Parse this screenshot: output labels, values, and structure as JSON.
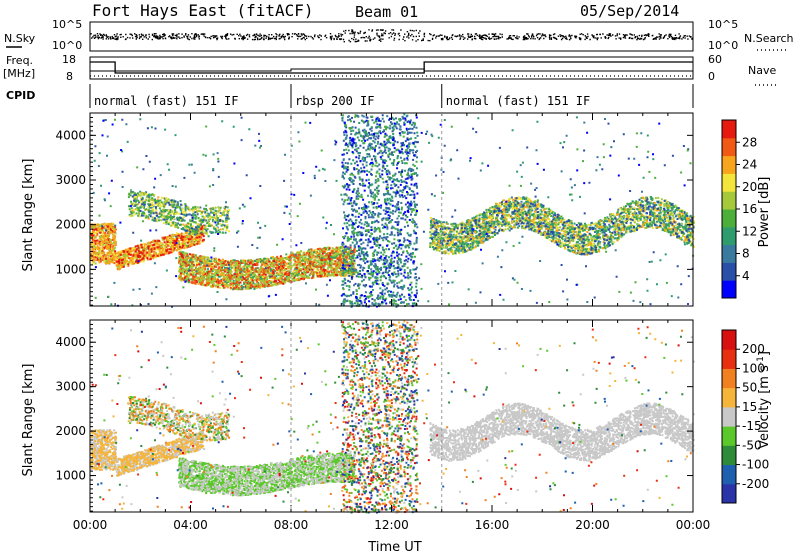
{
  "header": {
    "station": "Fort Hays East (fitACF)",
    "beam": "Beam 01",
    "date": "05/Sep/2014"
  },
  "panels": {
    "nsky_label": "N.Sky",
    "nsky_ticks": [
      "10^5",
      "10^0"
    ],
    "nsearch_label": "N.Search",
    "nsearch_ticks": [
      "10^5",
      "10^0"
    ],
    "freq_label": "Freq.",
    "freq_unit": "[MHz]",
    "freq_ticks": [
      "18",
      "8"
    ],
    "nave_label": "Nave",
    "nave_ticks": [
      "60",
      "0"
    ],
    "cpid_label": "CPID",
    "cpid_segments": [
      {
        "label": "normal (fast) 151 IF",
        "start": 0,
        "end": 8
      },
      {
        "label": "rbsp 200 IF",
        "start": 8,
        "end": 14
      },
      {
        "label": "normal (fast) 151 IF",
        "start": 14,
        "end": 24
      }
    ]
  },
  "chart_data": [
    {
      "type": "heatmap",
      "name": "power",
      "ylabel": "Slant Range [km]",
      "xlabel": "",
      "ylim": [
        180,
        4500
      ],
      "xlim": [
        0,
        24
      ],
      "yticks": [
        "1000",
        "2000",
        "3000",
        "4000"
      ],
      "colorbar_label": "Power [dB]",
      "colorbar_ticks": [
        "28",
        "24",
        "20",
        "16",
        "12",
        "8",
        "4"
      ],
      "colors": [
        "#0000ff",
        "#2a4fa8",
        "#3a7a9e",
        "#2f9c6e",
        "#4caf3a",
        "#a5c93a",
        "#f3e53c",
        "#f7a51c",
        "#f05a14",
        "#e61a10"
      ]
    },
    {
      "type": "heatmap",
      "name": "velocity",
      "ylabel": "Slant Range [km]",
      "xlabel": "Time UT",
      "ylim": [
        180,
        4500
      ],
      "xlim": [
        0,
        24
      ],
      "yticks": [
        "1000",
        "2000",
        "3000",
        "4000"
      ],
      "xticks": [
        "00:00",
        "04:00",
        "08:00",
        "12:00",
        "16:00",
        "20:00",
        "00:00"
      ],
      "colorbar_label": "Velocity [m s",
      "colorbar_label_sup": "-1",
      "colorbar_label_end": "]",
      "colorbar_ticks": [
        "200",
        "100",
        "50",
        "15",
        "-15",
        "-50",
        "-100",
        "-200"
      ],
      "colors": [
        "#2a33a8",
        "#1f5fb0",
        "#2e8b3a",
        "#5ac82a",
        "#c8c8c8",
        "#f5b43a",
        "#f08020",
        "#e83010",
        "#d81010"
      ]
    }
  ]
}
